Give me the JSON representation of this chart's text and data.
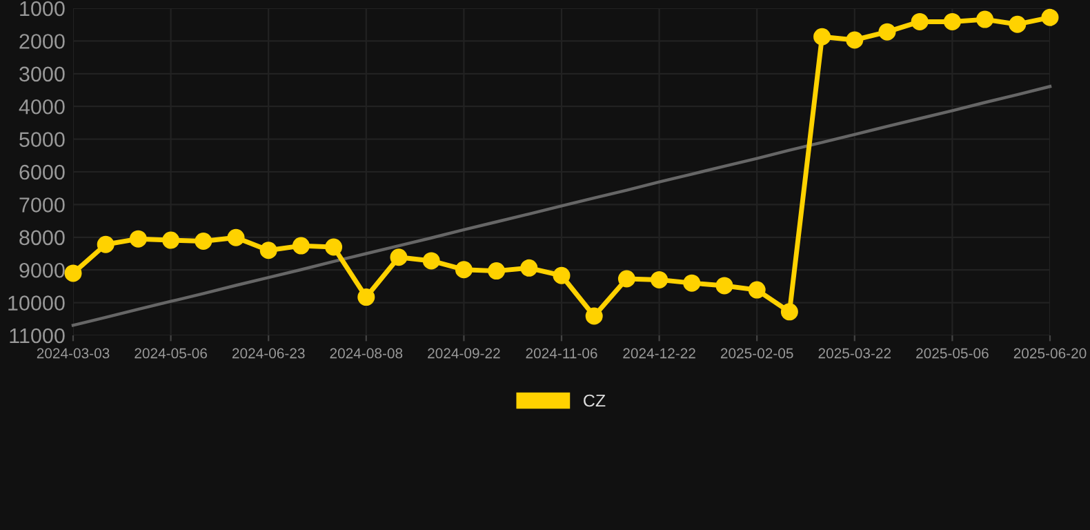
{
  "chart_data": {
    "type": "line",
    "categories": [
      "2024-03-03",
      null,
      null,
      "2024-05-06",
      null,
      null,
      "2024-06-23",
      null,
      null,
      "2024-08-08",
      null,
      null,
      "2024-09-22",
      null,
      null,
      "2024-11-06",
      null,
      null,
      "2024-12-22",
      null,
      null,
      "2025-02-05",
      null,
      null,
      "2025-03-22",
      null,
      null,
      "2025-05-06",
      null,
      null,
      "2025-06-20"
    ],
    "series": [
      {
        "name": "CZ",
        "color": "#ffd200",
        "marker": "circle",
        "values": [
          9100,
          8220,
          8050,
          8090,
          8120,
          8010,
          8400,
          8260,
          8300,
          9830,
          8610,
          8720,
          8990,
          9030,
          8940,
          9170,
          10410,
          9270,
          9300,
          9400,
          9480,
          9610,
          10280,
          1870,
          1970,
          1720,
          1410,
          1410,
          1340,
          1490,
          1280
        ]
      },
      {
        "color": "#666666",
        "marker": "none",
        "values": [
          10690,
          10450,
          10200,
          9960,
          9720,
          9470,
          9230,
          8990,
          8740,
          8500,
          8260,
          8020,
          7770,
          7530,
          7290,
          7040,
          6800,
          6560,
          6310,
          6070,
          5830,
          5590,
          5340,
          5100,
          4860,
          4610,
          4370,
          4130,
          3880,
          3640,
          3390
        ]
      }
    ],
    "ylim": [
      11000,
      1000
    ],
    "yticks": [
      1000,
      2000,
      3000,
      4000,
      5000,
      6000,
      7000,
      8000,
      9000,
      10000,
      11000
    ],
    "grid": true,
    "legend": "bottom"
  }
}
